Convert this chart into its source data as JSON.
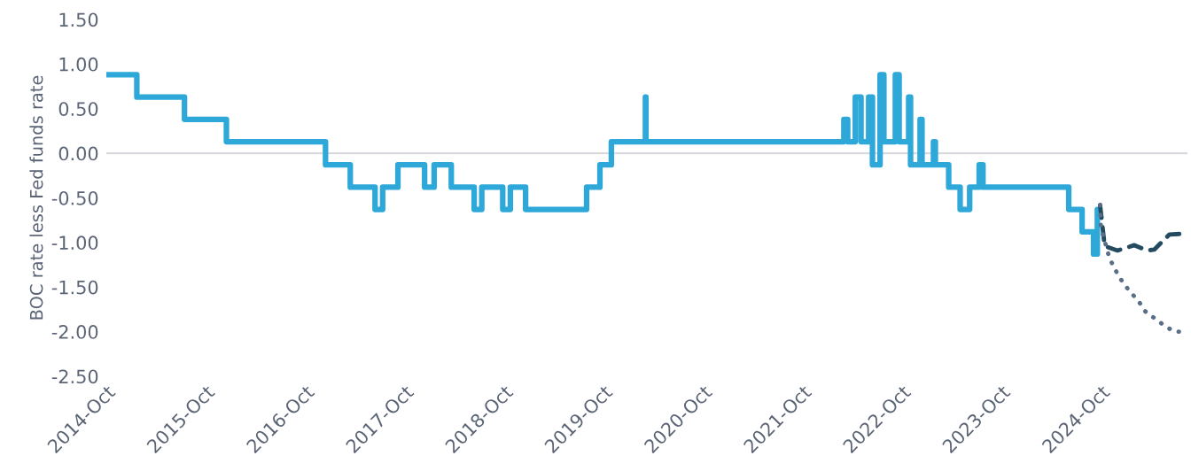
{
  "chart_data": {
    "type": "line",
    "ylabel": "BOC rate less Fed funds rate",
    "xlim": [
      "2014-10-01",
      "2025-08-15"
    ],
    "ylim": [
      -2.5,
      1.5
    ],
    "yticks": [
      {
        "value": -2.5,
        "label": "-2.50"
      },
      {
        "value": -2.0,
        "label": "-2.00"
      },
      {
        "value": -1.5,
        "label": "-1.50"
      },
      {
        "value": -1.0,
        "label": "-1.00"
      },
      {
        "value": -0.5,
        "label": "-0.50"
      },
      {
        "value": 0,
        "label": "0.00"
      },
      {
        "value": 0.5,
        "label": "0.50"
      },
      {
        "value": 1.0,
        "label": "1.00"
      },
      {
        "value": 1.5,
        "label": "1.50"
      }
    ],
    "xticks": [
      {
        "value": "2014-10-01",
        "label": "2014-Oct"
      },
      {
        "value": "2015-10-01",
        "label": "2015-Oct"
      },
      {
        "value": "2016-10-01",
        "label": "2016-Oct"
      },
      {
        "value": "2017-10-01",
        "label": "2017-Oct"
      },
      {
        "value": "2018-10-01",
        "label": "2018-Oct"
      },
      {
        "value": "2019-10-01",
        "label": "2019-Oct"
      },
      {
        "value": "2020-10-01",
        "label": "2020-Oct"
      },
      {
        "value": "2021-10-01",
        "label": "2021-Oct"
      },
      {
        "value": "2022-10-01",
        "label": "2022-Oct"
      },
      {
        "value": "2023-10-01",
        "label": "2023-Oct"
      },
      {
        "value": "2024-10-01",
        "label": "2024-Oct"
      }
    ],
    "grid": false,
    "legend": false,
    "ref_lines": [
      {
        "axis": "y",
        "value": 0,
        "color": "#d9d9e0"
      }
    ],
    "series": [
      {
        "type": "step",
        "color": "#2ea8d8",
        "line_style": "solid",
        "x": [
          "2014-10-01",
          "2015-01-21",
          "2015-07-15",
          "2015-12-16",
          "2016-12-14",
          "2017-03-15",
          "2017-06-14",
          "2017-07-12",
          "2017-09-06",
          "2017-12-13",
          "2018-01-17",
          "2018-03-21",
          "2018-06-13",
          "2018-07-11",
          "2018-09-26",
          "2018-10-24",
          "2018-12-19",
          "2019-07-31",
          "2019-09-18",
          "2019-10-30",
          "2020-03-03",
          "2020-03-05",
          "2022-03-02",
          "2022-03-16",
          "2022-04-13",
          "2022-05-04",
          "2022-06-01",
          "2022-06-15",
          "2022-07-13",
          "2022-07-27",
          "2022-09-07",
          "2022-09-21",
          "2022-10-26",
          "2022-11-02",
          "2022-12-07",
          "2022-12-14",
          "2023-01-25",
          "2023-02-01",
          "2023-03-22",
          "2023-05-03",
          "2023-06-07",
          "2023-07-12",
          "2023-07-26",
          "2024-06-05",
          "2024-07-24",
          "2024-09-04",
          "2024-09-18",
          "2024-09-25"
        ],
        "values": [
          0.88,
          0.63,
          0.38,
          0.13,
          -0.13,
          -0.38,
          -0.63,
          -0.38,
          -0.13,
          -0.38,
          -0.13,
          -0.38,
          -0.63,
          -0.38,
          -0.63,
          -0.38,
          -0.63,
          -0.38,
          -0.13,
          0.13,
          0.63,
          0.13,
          0.38,
          0.13,
          0.63,
          0.13,
          0.63,
          -0.13,
          0.88,
          0.13,
          0.88,
          0.13,
          0.63,
          -0.13,
          0.38,
          -0.13,
          0.13,
          -0.13,
          -0.38,
          -0.63,
          -0.38,
          -0.13,
          -0.38,
          -0.63,
          -0.88,
          -1.13,
          -0.63,
          -0.63
        ]
      },
      {
        "color": "#234a5e",
        "line_style": "dashed",
        "x": [
          "2024-09-28",
          "2024-10-15",
          "2024-12-01",
          "2025-02-01",
          "2025-03-20",
          "2025-04-15",
          "2025-06-10",
          "2025-08-15"
        ],
        "values": [
          -0.58,
          -1.04,
          -1.09,
          -1.03,
          -1.09,
          -1.08,
          -0.91,
          -0.9
        ]
      },
      {
        "color": "#5a6f87",
        "line_style": "dotted",
        "x": [
          "2024-09-28",
          "2024-10-01",
          "2024-11-01",
          "2024-11-20",
          "2024-12-10",
          "2025-01-15",
          "2025-02-15",
          "2025-03-12",
          "2025-04-25",
          "2025-05-30",
          "2025-07-01",
          "2025-08-10"
        ],
        "values": [
          -0.58,
          -0.83,
          -1.17,
          -1.29,
          -1.4,
          -1.55,
          -1.65,
          -1.77,
          -1.87,
          -1.95,
          -2.0,
          -2.0
        ]
      }
    ]
  }
}
